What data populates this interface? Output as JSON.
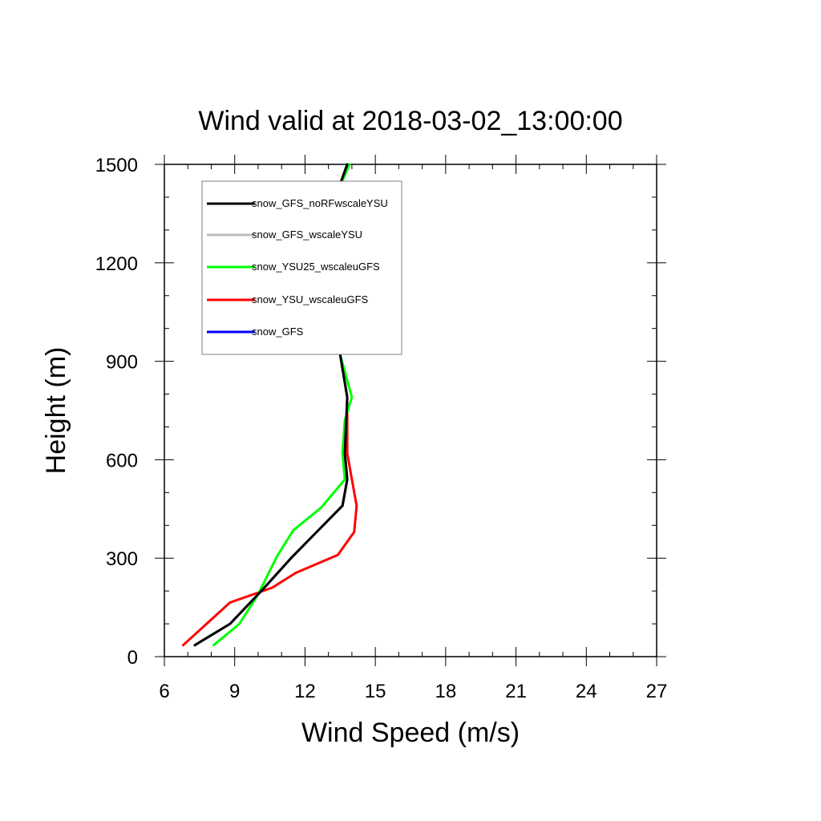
{
  "chart_data": {
    "type": "line",
    "title": "Wind valid at 2018-03-02_13:00:00",
    "xlabel": "Wind Speed (m/s)",
    "ylabel": "Height (m)",
    "xlim": [
      6,
      27
    ],
    "ylim": [
      0,
      1500
    ],
    "xticks": [
      6,
      9,
      12,
      15,
      18,
      21,
      24,
      27
    ],
    "yticks": [
      0,
      300,
      600,
      900,
      1200,
      1500
    ],
    "grid": false,
    "legend_position": "top-left",
    "series": [
      {
        "name": "snow_GFS_noRFwscaleYSU",
        "color": "#000000",
        "points": [
          [
            7.3,
            35
          ],
          [
            8.8,
            100
          ],
          [
            10.2,
            205
          ],
          [
            11.4,
            300
          ],
          [
            12.5,
            380
          ],
          [
            13.6,
            460
          ],
          [
            13.8,
            540
          ],
          [
            13.7,
            620
          ],
          [
            13.8,
            790
          ],
          [
            13.5,
            920
          ],
          [
            13.2,
            1070
          ],
          [
            13.0,
            1200
          ],
          [
            13.0,
            1300
          ],
          [
            13.3,
            1400
          ],
          [
            13.8,
            1500
          ]
        ]
      },
      {
        "name": "snow_GFS_wscaleYSU",
        "color": "#bdbdbd",
        "points": [
          [
            7.3,
            35
          ],
          [
            8.8,
            100
          ],
          [
            10.2,
            205
          ],
          [
            11.4,
            300
          ],
          [
            12.5,
            380
          ],
          [
            13.6,
            460
          ],
          [
            13.8,
            540
          ],
          [
            13.7,
            620
          ],
          [
            13.8,
            790
          ],
          [
            13.5,
            920
          ],
          [
            13.2,
            1070
          ],
          [
            13.0,
            1200
          ],
          [
            13.0,
            1300
          ],
          [
            13.3,
            1400
          ],
          [
            13.8,
            1500
          ]
        ]
      },
      {
        "name": "snow_YSU25_wscaleuGFS",
        "color": "#00ff00",
        "points": [
          [
            8.1,
            35
          ],
          [
            9.2,
            100
          ],
          [
            10.0,
            190
          ],
          [
            10.8,
            305
          ],
          [
            11.5,
            385
          ],
          [
            12.7,
            455
          ],
          [
            13.7,
            540
          ],
          [
            13.6,
            620
          ],
          [
            13.7,
            720
          ],
          [
            14.0,
            790
          ],
          [
            13.5,
            920
          ],
          [
            13.2,
            1070
          ],
          [
            12.9,
            1200
          ],
          [
            13.0,
            1300
          ],
          [
            13.3,
            1400
          ],
          [
            13.9,
            1500
          ]
        ]
      },
      {
        "name": "snow_YSU_wscaleuGFS",
        "color": "#ff0000",
        "points": [
          [
            6.8,
            35
          ],
          [
            7.8,
            100
          ],
          [
            8.8,
            165
          ],
          [
            10.6,
            210
          ],
          [
            11.6,
            255
          ],
          [
            13.4,
            310
          ],
          [
            14.1,
            380
          ],
          [
            14.2,
            460
          ],
          [
            14.0,
            540
          ],
          [
            13.8,
            620
          ],
          [
            13.8,
            790
          ],
          [
            13.5,
            920
          ],
          [
            13.2,
            1070
          ],
          [
            13.0,
            1200
          ],
          [
            13.0,
            1300
          ],
          [
            13.3,
            1400
          ],
          [
            13.8,
            1500
          ]
        ]
      },
      {
        "name": "snow_GFS",
        "color": "#0000ff",
        "points": [
          [
            7.3,
            35
          ],
          [
            8.8,
            100
          ],
          [
            10.2,
            205
          ],
          [
            11.4,
            300
          ],
          [
            12.5,
            380
          ],
          [
            13.6,
            460
          ],
          [
            13.8,
            540
          ],
          [
            13.7,
            620
          ],
          [
            13.8,
            790
          ],
          [
            13.5,
            920
          ],
          [
            13.2,
            1070
          ],
          [
            13.0,
            1200
          ],
          [
            13.0,
            1300
          ],
          [
            13.3,
            1400
          ],
          [
            13.8,
            1500
          ]
        ]
      }
    ],
    "draw_order": [
      3,
      2,
      4,
      1,
      0
    ]
  }
}
